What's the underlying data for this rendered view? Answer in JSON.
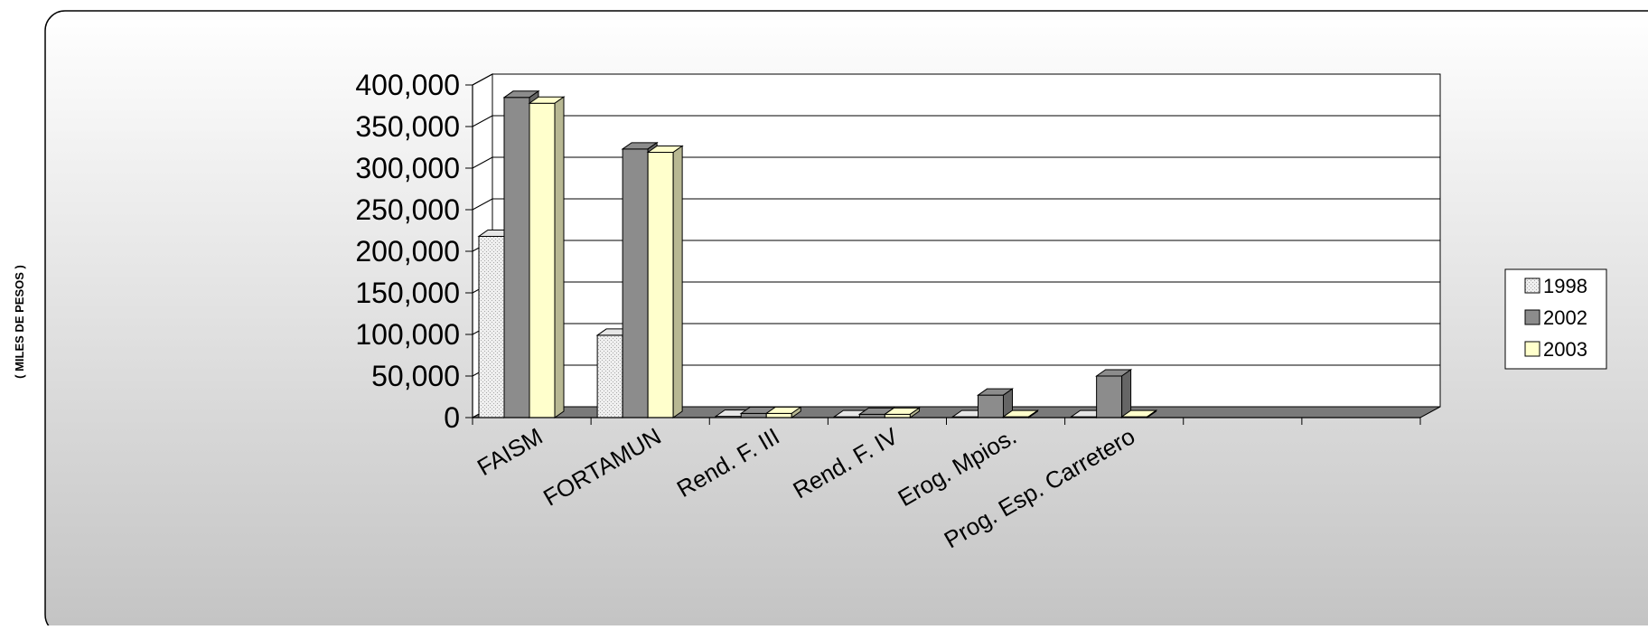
{
  "chart_data": {
    "type": "bar",
    "title": "",
    "xlabel": "",
    "ylabel": "( MILES DE PESOS )",
    "categories": [
      "FAISM",
      "FORTAMUN",
      "Rend. F. III",
      "Rend. F. IV",
      "Erog. Mpios.",
      "Prog. Esp. Carretero"
    ],
    "series": [
      {
        "name": "1998",
        "values": [
          218000,
          99000,
          1500,
          1000,
          1000,
          1000
        ],
        "color": "#e6e6e6"
      },
      {
        "name": "2002",
        "values": [
          385000,
          323000,
          5000,
          4000,
          27000,
          50000
        ],
        "color": "#8c8c8c"
      },
      {
        "name": "2003",
        "values": [
          378000,
          319000,
          5000,
          4000,
          1000,
          1000
        ],
        "color": "#ffffcc"
      }
    ],
    "ylim": [
      0,
      400000
    ],
    "yticks": [
      "0",
      "50,000",
      "100,000",
      "150,000",
      "200,000",
      "250,000",
      "300,000",
      "350,000",
      "400,000"
    ],
    "grid": true,
    "legend_position": "right"
  }
}
